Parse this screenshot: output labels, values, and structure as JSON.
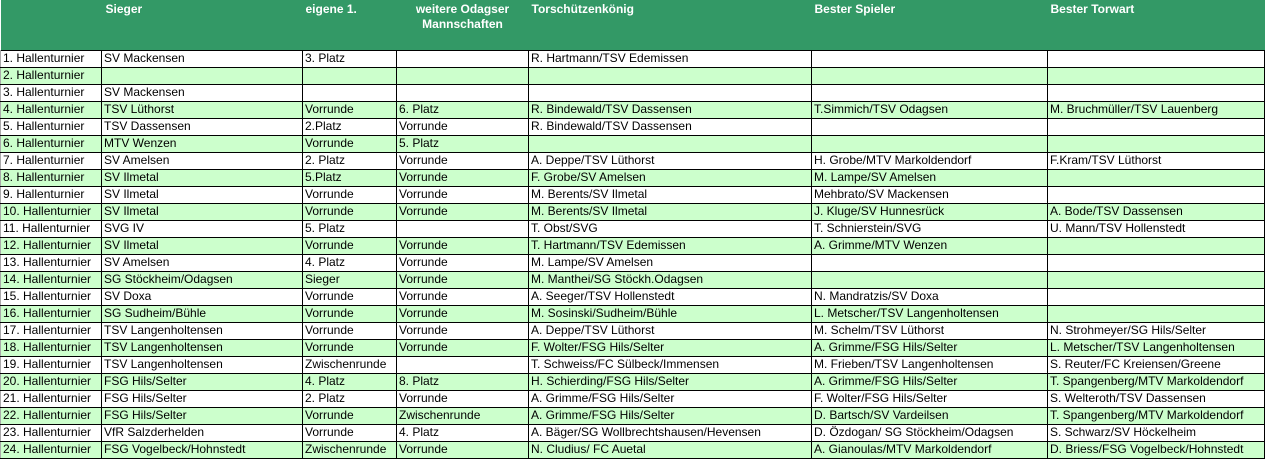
{
  "colors": {
    "header": "#339966",
    "row_alt": "#ccffcc",
    "row": "#ffffff"
  },
  "headers": [
    "",
    "Sieger",
    "eigene 1.",
    "weitere Odagser Mannschaften",
    "Torschützenkönig",
    "Bester Spieler",
    "Bester Torwart"
  ],
  "rows": [
    [
      "1. Hallenturnier",
      "SV Mackensen",
      "3. Platz",
      "",
      "R. Hartmann/TSV Edemissen",
      "",
      ""
    ],
    [
      "2. Hallenturnier",
      "",
      "",
      "",
      "",
      "",
      ""
    ],
    [
      "3. Hallenturnier",
      "SV Mackensen",
      "",
      "",
      "",
      "",
      ""
    ],
    [
      "4. Hallenturnier",
      "TSV Lüthorst",
      "Vorrunde",
      "6. Platz",
      "R. Bindewald/TSV Dassensen",
      "T.Simmich/TSV Odagsen",
      "M. Bruchmüller/TSV Lauenberg"
    ],
    [
      "5. Hallenturnier",
      "TSV Dassensen",
      "2.Platz",
      "Vorrunde",
      "R. Bindewald/TSV Dassensen",
      "",
      ""
    ],
    [
      "6. Hallenturnier",
      "MTV Wenzen",
      "Vorrunde",
      "5. Platz",
      "",
      "",
      ""
    ],
    [
      "7. Hallenturnier",
      "SV Amelsen",
      "2. Platz",
      "Vorrunde",
      "A. Deppe/TSV Lüthorst",
      "H. Grobe/MTV Markoldendorf",
      "F.Kram/TSV Lüthorst"
    ],
    [
      "8. Hallenturnier",
      "SV Ilmetal",
      "5.Platz",
      "Vorrunde",
      "F. Grobe/SV Amelsen",
      "M. Lampe/SV Amelsen",
      ""
    ],
    [
      "9. Hallenturnier",
      "SV Ilmetal",
      "Vorrunde",
      "Vorrunde",
      "M. Berents/SV Ilmetal",
      "Mehbrato/SV Mackensen",
      ""
    ],
    [
      "10. Hallenturnier",
      "SV Ilmetal",
      "Vorrunde",
      "Vorrunde",
      "M. Berents/SV Ilmetal",
      "J. Kluge/SV Hunnesrück",
      "A. Bode/TSV Dassensen"
    ],
    [
      "11. Hallenturnier",
      "SVG IV",
      "5. Platz",
      "",
      "T. Obst/SVG",
      "T. Schnierstein/SVG",
      "U. Mann/TSV Hollenstedt"
    ],
    [
      "12. Hallenturnier",
      "SV Ilmetal",
      "Vorrunde",
      "Vorrunde",
      "T. Hartmann/TSV Edemissen",
      "A. Grimme/MTV Wenzen",
      ""
    ],
    [
      "13. Hallenturnier",
      "SV Amelsen",
      "4. Platz",
      "Vorrunde",
      "M. Lampe/SV Amelsen",
      "",
      ""
    ],
    [
      "14. Hallenturnier",
      "SG Stöckheim/Odagsen",
      "Sieger",
      "Vorrunde",
      "M. Manthei/SG Stöckh.Odagsen",
      "",
      ""
    ],
    [
      "15. Hallenturnier",
      "SV Doxa",
      "Vorrunde",
      "Vorrunde",
      "A. Seeger/TSV Hollenstedt",
      "N. Mandratzis/SV Doxa",
      ""
    ],
    [
      "16. Hallenturnier",
      "SG Sudheim/Bühle",
      "Vorrunde",
      "Vorrunde",
      "M. Sosinski/Sudheim/Bühle",
      "L. Metscher/TSV Langenholtensen",
      ""
    ],
    [
      "17. Hallenturnier",
      "TSV Langenholtensen",
      "Vorrunde",
      "Vorrunde",
      "A. Deppe/TSV Lüthorst",
      "M. Schelm/TSV Lüthorst",
      "N. Strohmeyer/SG Hils/Selter"
    ],
    [
      "18. Hallenturnier",
      "TSV Langenholtensen",
      "Vorrunde",
      "Vorrunde",
      "F. Wolter/FSG Hils/Selter",
      "A. Grimme/FSG Hils/Selter",
      "L. Metscher/TSV Langenholtensen"
    ],
    [
      "19. Hallenturnier",
      "TSV Langenholtensen",
      "Zwischenrunde",
      "",
      "T. Schweiss/FC Sülbeck/Immensen",
      "M. Frieben/TSV Langenholtensen",
      "S. Reuter/FC Kreiensen/Greene"
    ],
    [
      "20. Hallenturnier",
      "FSG Hils/Selter",
      "4. Platz",
      "8. Platz",
      "H. Schierding/FSG Hils/Selter",
      "A. Grimme/FSG Hils/Selter",
      "T. Spangenberg/MTV Markoldendorf"
    ],
    [
      "21. Hallenturnier",
      "FSG Hils/Selter",
      "2. Platz",
      "Vorrunde",
      "A. Grimme/FSG Hils/Selter",
      "F. Wolter/FSG Hils/Selter",
      "S. Welteroth/TSV Dassensen"
    ],
    [
      "22. Hallenturnier",
      "FSG Hils/Selter",
      "Vorrunde",
      "Zwischenrunde",
      "A. Grimme/FSG Hils/Selter",
      "D. Bartsch/SV Vardeilsen",
      "T. Spangenberg/MTV Markoldendorf"
    ],
    [
      "23. Hallenturnier",
      "VfR Salzderhelden",
      "Vorrunde",
      "4. Platz",
      "A. Bäger/SG Wollbrechtshausen/Hevensen",
      "D. Özdogan/ SG Stöckheim/Odagsen",
      "S. Schwarz/SV Höckelheim"
    ],
    [
      "24. Hallenturnier",
      "FSG Vogelbeck/Hohnstedt",
      "Zwischenrunde",
      "Vorrunde",
      "N. Cludius/ FC Auetal",
      "A. Gianoulas/MTV Markoldendorf",
      "D. Briess/FSG Vogelbeck/Hohnstedt"
    ]
  ]
}
